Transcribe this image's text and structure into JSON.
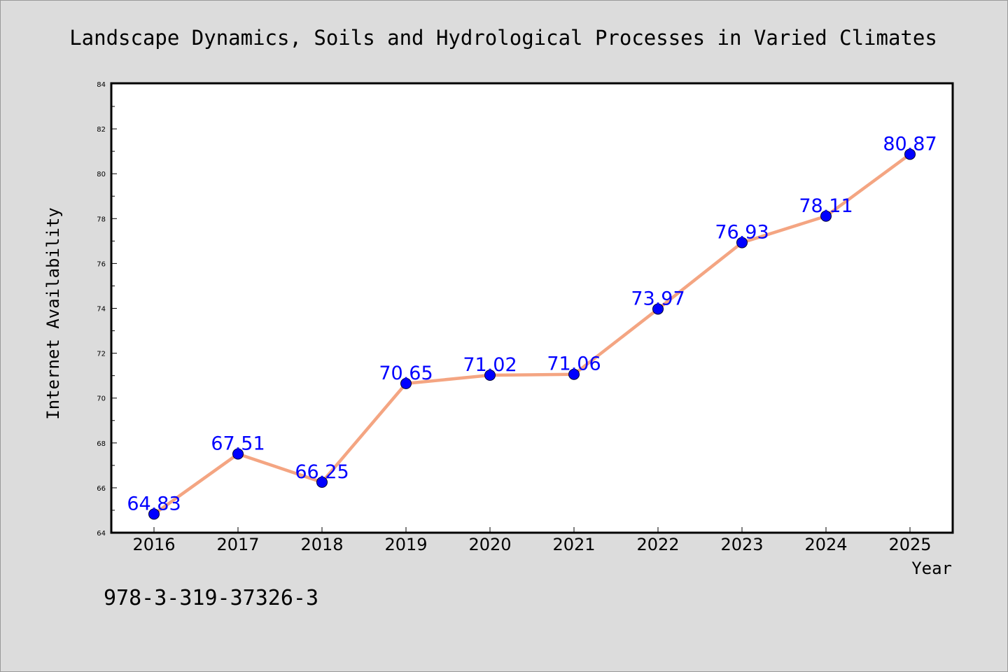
{
  "chart_data": {
    "type": "line",
    "title": "Landscape Dynamics, Soils and Hydrological Processes in Varied Climates",
    "xlabel": "Year",
    "ylabel": "Internet Availability",
    "categories": [
      "2016",
      "2017",
      "2018",
      "2019",
      "2020",
      "2021",
      "2022",
      "2023",
      "2024",
      "2025"
    ],
    "series": [
      {
        "values": [
          64.83,
          67.51,
          66.25,
          70.65,
          71.02,
          71.06,
          73.97,
          76.93,
          78.11,
          80.87
        ],
        "labels": [
          "64.83",
          "67.51",
          "66.25",
          "70.65",
          "71.02",
          "71.06",
          "73.97",
          "76.93",
          "78.11",
          "80.87"
        ],
        "line_color": "#f4a582",
        "marker_color": "#0000ff"
      }
    ],
    "yticks": [
      "64",
      "66",
      "68",
      "70",
      "72",
      "74",
      "76",
      "78",
      "80",
      "82",
      "84"
    ],
    "ylim": [
      64,
      84
    ],
    "grid": false,
    "legend": "none",
    "label_color": "#0000ff"
  },
  "footer": {
    "isbn": "978-3-319-37326-3"
  }
}
